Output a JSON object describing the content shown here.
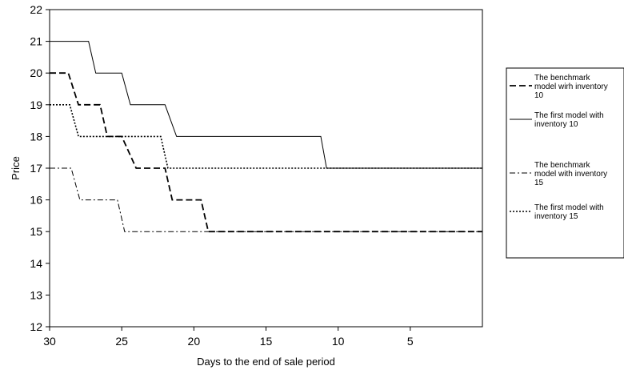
{
  "chart_data": {
    "type": "line",
    "title": "",
    "xlabel": "Days to the end of sale period",
    "ylabel": "Price",
    "xlim": [
      30,
      0
    ],
    "ylim": [
      12,
      22
    ],
    "x_ticks": [
      30,
      25,
      20,
      15,
      10,
      5
    ],
    "y_ticks": [
      12,
      13,
      14,
      15,
      16,
      17,
      18,
      19,
      20,
      21,
      22
    ],
    "grid": false,
    "legend_position": "right",
    "series": [
      {
        "name": "The benchmark model wirh inventory 10",
        "legend_lines": [
          "The benchmark",
          "model wirh inventory",
          "10"
        ],
        "style": "dashed",
        "color": "#000000",
        "points": [
          [
            30,
            20
          ],
          [
            28.7,
            20
          ],
          [
            28,
            19
          ],
          [
            26.5,
            19
          ],
          [
            26,
            18
          ],
          [
            25,
            18
          ],
          [
            24,
            17
          ],
          [
            22,
            17
          ],
          [
            21.5,
            16
          ],
          [
            19.5,
            16
          ],
          [
            19,
            15
          ],
          [
            0,
            15
          ]
        ]
      },
      {
        "name": "The first model with inventory 10",
        "legend_lines": [
          "The first model with",
          "inventory 10"
        ],
        "style": "solid",
        "color": "#000000",
        "points": [
          [
            30,
            21
          ],
          [
            27.3,
            21
          ],
          [
            26.8,
            20
          ],
          [
            25,
            20
          ],
          [
            24.4,
            19
          ],
          [
            22,
            19
          ],
          [
            21.2,
            18
          ],
          [
            11.2,
            18
          ],
          [
            10.8,
            17
          ],
          [
            0,
            17
          ]
        ]
      },
      {
        "name": "The benchmark model with inventory 15",
        "legend_lines": [
          "The benchmark",
          "model with inventory",
          "15"
        ],
        "style": "dash-dot",
        "color": "#000000",
        "points": [
          [
            30,
            17
          ],
          [
            28.5,
            17
          ],
          [
            27.9,
            16
          ],
          [
            25.3,
            16
          ],
          [
            24.8,
            15
          ],
          [
            0,
            15
          ]
        ]
      },
      {
        "name": "The first model with inventory 15",
        "legend_lines": [
          "The first model with",
          "inventory 15"
        ],
        "style": "dotted",
        "color": "#000000",
        "points": [
          [
            30,
            19
          ],
          [
            28.6,
            19
          ],
          [
            28,
            18
          ],
          [
            22.3,
            18
          ],
          [
            21.8,
            17
          ],
          [
            0,
            17
          ]
        ]
      }
    ]
  }
}
